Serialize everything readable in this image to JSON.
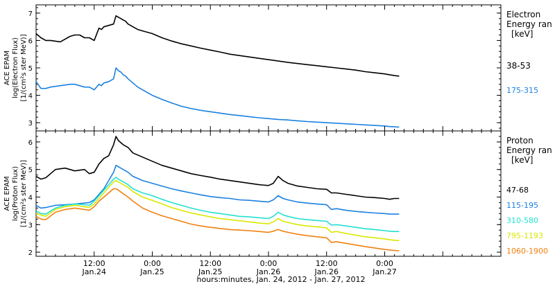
{
  "colors": {
    "black": "#000000",
    "blue": "#1a80e0",
    "cyan": "#22e0d0",
    "yellow": "#d8e800",
    "orange": "#f08010"
  },
  "x_axis": {
    "xlabel": "hours:minutes, Jan. 24, 2012 - Jan. 27, 2012",
    "range_hours": [
      0,
      96
    ],
    "ticks": [
      {
        "hour": 12,
        "time": "12:00",
        "date": "Jan.24"
      },
      {
        "hour": 24,
        "time": "0:00",
        "date": "Jan.25"
      },
      {
        "hour": 36,
        "time": "12:00",
        "date": "Jan.25"
      },
      {
        "hour": 48,
        "time": "0:00",
        "date": "Jan.26"
      },
      {
        "hour": 60,
        "time": "12:00",
        "date": "Jan.26"
      },
      {
        "hour": 72,
        "time": "0:00",
        "date": "Jan.27"
      }
    ]
  },
  "chart_data": [
    {
      "type": "line",
      "panel": "electron",
      "ylabel": [
        "ACE EPAM",
        "log(Electron Flux)",
        "[1/(cm²s ster MeV)]"
      ],
      "ylim": [
        2.7,
        7.3
      ],
      "yticks": [
        3,
        4,
        5,
        6,
        7
      ],
      "legend_title": [
        "Electron",
        "Energy ran",
        "[keV]"
      ],
      "series": [
        {
          "name": "38-53",
          "color_key": "black",
          "x": [
            0,
            1,
            2,
            3,
            5,
            7,
            8,
            9,
            10,
            11,
            12,
            13,
            13.5,
            14,
            15,
            16,
            16.5,
            17,
            17.5,
            18,
            18.5,
            19,
            20,
            21,
            22,
            24,
            26,
            28,
            30,
            32,
            34,
            36,
            38,
            40,
            42,
            44,
            46,
            48,
            50,
            52,
            54,
            56,
            58,
            60,
            62,
            64,
            66,
            68,
            70,
            72,
            73,
            74,
            75
          ],
          "y": [
            6.25,
            6.1,
            6.0,
            6.0,
            5.95,
            6.15,
            6.2,
            6.2,
            6.1,
            6.1,
            6.0,
            6.45,
            6.4,
            6.5,
            6.55,
            6.6,
            6.9,
            6.85,
            6.8,
            6.75,
            6.7,
            6.6,
            6.5,
            6.4,
            6.35,
            6.25,
            6.1,
            5.98,
            5.88,
            5.8,
            5.72,
            5.65,
            5.58,
            5.5,
            5.45,
            5.4,
            5.35,
            5.3,
            5.25,
            5.2,
            5.16,
            5.12,
            5.08,
            5.04,
            5.0,
            4.96,
            4.92,
            4.86,
            4.82,
            4.78,
            4.75,
            4.72,
            4.7
          ]
        },
        {
          "name": "175-315",
          "color_key": "blue",
          "x": [
            0,
            1,
            2,
            3,
            5,
            7,
            8,
            9,
            10,
            11,
            12,
            13,
            13.5,
            14,
            15,
            16,
            16.5,
            17,
            17.5,
            18,
            18.5,
            19,
            20,
            21,
            22,
            24,
            26,
            28,
            30,
            32,
            34,
            36,
            38,
            40,
            42,
            44,
            46,
            48,
            50,
            52,
            54,
            56,
            58,
            60,
            62,
            64,
            66,
            68,
            70,
            72,
            73,
            74,
            75
          ],
          "y": [
            4.5,
            4.25,
            4.25,
            4.3,
            4.35,
            4.4,
            4.4,
            4.35,
            4.3,
            4.3,
            4.2,
            4.4,
            4.35,
            4.45,
            4.5,
            4.6,
            5.0,
            4.9,
            4.85,
            4.75,
            4.7,
            4.6,
            4.45,
            4.3,
            4.2,
            4.0,
            3.85,
            3.72,
            3.6,
            3.52,
            3.45,
            3.4,
            3.35,
            3.3,
            3.26,
            3.22,
            3.18,
            3.15,
            3.12,
            3.1,
            3.07,
            3.04,
            3.02,
            3.0,
            2.98,
            2.96,
            2.94,
            2.92,
            2.9,
            2.88,
            2.86,
            2.85,
            2.84
          ]
        }
      ]
    },
    {
      "type": "line",
      "panel": "proton",
      "ylabel": [
        "ACE EPAM",
        "log(Proton Flux)",
        "[1/(cm²s ster MeV)]"
      ],
      "ylim": [
        1.85,
        6.4
      ],
      "yticks": [
        2,
        3,
        4,
        5,
        6
      ],
      "legend_title": [
        "Proton",
        "Energy ran",
        "[keV]"
      ],
      "series": [
        {
          "name": "47-68",
          "color_key": "black",
          "x": [
            0,
            1,
            2,
            4,
            6,
            8,
            10,
            11,
            12,
            13,
            14,
            15,
            16,
            16.5,
            17,
            18,
            19,
            20,
            22,
            24,
            26,
            28,
            30,
            32,
            34,
            36,
            38,
            40,
            42,
            44,
            46,
            48,
            49,
            50,
            51,
            52,
            54,
            56,
            58,
            60,
            61,
            62,
            64,
            66,
            68,
            70,
            72,
            73,
            74,
            75
          ],
          "y": [
            4.75,
            4.65,
            4.7,
            5.0,
            5.05,
            4.95,
            5.0,
            4.85,
            4.9,
            5.2,
            5.4,
            5.5,
            5.9,
            6.2,
            6.05,
            5.9,
            5.8,
            5.6,
            5.45,
            5.3,
            5.15,
            5.05,
            4.95,
            4.85,
            4.78,
            4.72,
            4.65,
            4.6,
            4.55,
            4.5,
            4.45,
            4.42,
            4.5,
            4.75,
            4.6,
            4.5,
            4.4,
            4.35,
            4.3,
            4.28,
            4.15,
            4.15,
            4.1,
            4.05,
            4.0,
            3.98,
            3.95,
            3.92,
            3.95,
            3.95
          ]
        },
        {
          "name": "115-195",
          "color_key": "blue",
          "x": [
            0,
            1,
            2,
            4,
            6,
            8,
            10,
            11,
            12,
            13,
            14,
            15,
            16,
            16.5,
            17,
            18,
            19,
            20,
            22,
            24,
            26,
            28,
            30,
            32,
            34,
            36,
            38,
            40,
            42,
            44,
            46,
            48,
            49,
            50,
            51,
            52,
            54,
            56,
            58,
            60,
            61,
            62,
            64,
            66,
            68,
            70,
            72,
            73,
            74,
            75
          ],
          "y": [
            3.7,
            3.6,
            3.62,
            3.7,
            3.72,
            3.75,
            3.78,
            3.8,
            3.9,
            4.1,
            4.3,
            4.6,
            4.9,
            5.15,
            5.1,
            5.0,
            4.9,
            4.75,
            4.6,
            4.5,
            4.4,
            4.3,
            4.22,
            4.15,
            4.08,
            4.02,
            3.98,
            3.95,
            3.9,
            3.88,
            3.85,
            3.82,
            3.9,
            4.05,
            3.95,
            3.9,
            3.82,
            3.78,
            3.75,
            3.72,
            3.55,
            3.58,
            3.52,
            3.48,
            3.45,
            3.42,
            3.4,
            3.38,
            3.38,
            3.38
          ]
        },
        {
          "name": "310-580",
          "color_key": "cyan",
          "x": [
            0,
            1,
            2,
            4,
            6,
            8,
            10,
            11,
            12,
            13,
            14,
            15,
            16,
            16.5,
            17,
            18,
            19,
            20,
            22,
            24,
            26,
            28,
            30,
            32,
            34,
            36,
            38,
            40,
            42,
            44,
            46,
            48,
            49,
            50,
            51,
            52,
            54,
            56,
            58,
            60,
            61,
            62,
            64,
            66,
            68,
            70,
            72,
            73,
            74,
            75
          ],
          "y": [
            3.5,
            3.4,
            3.38,
            3.6,
            3.7,
            3.75,
            3.72,
            3.7,
            3.85,
            4.05,
            4.25,
            4.45,
            4.65,
            4.72,
            4.65,
            4.55,
            4.45,
            4.3,
            4.15,
            4.05,
            3.92,
            3.8,
            3.7,
            3.6,
            3.52,
            3.45,
            3.4,
            3.35,
            3.3,
            3.28,
            3.25,
            3.22,
            3.3,
            3.45,
            3.35,
            3.3,
            3.22,
            3.18,
            3.15,
            3.12,
            2.98,
            3.0,
            2.95,
            2.9,
            2.85,
            2.82,
            2.78,
            2.76,
            2.75,
            2.75
          ]
        },
        {
          "name": "795-1193",
          "color_key": "yellow",
          "x": [
            0,
            1,
            2,
            4,
            6,
            8,
            10,
            11,
            12,
            13,
            14,
            15,
            16,
            16.5,
            17,
            18,
            19,
            20,
            22,
            24,
            26,
            28,
            30,
            32,
            34,
            36,
            38,
            40,
            42,
            44,
            46,
            48,
            49,
            50,
            51,
            52,
            54,
            56,
            58,
            60,
            61,
            62,
            64,
            66,
            68,
            70,
            72,
            73,
            74,
            75
          ],
          "y": [
            3.4,
            3.35,
            3.3,
            3.55,
            3.65,
            3.7,
            3.65,
            3.62,
            3.75,
            3.95,
            4.15,
            4.35,
            4.55,
            4.6,
            4.55,
            4.45,
            4.35,
            4.2,
            4.0,
            3.88,
            3.75,
            3.62,
            3.52,
            3.42,
            3.35,
            3.28,
            3.22,
            3.18,
            3.14,
            3.1,
            3.06,
            3.03,
            3.1,
            3.22,
            3.12,
            3.08,
            3.0,
            2.95,
            2.92,
            2.88,
            2.72,
            2.75,
            2.68,
            2.62,
            2.56,
            2.52,
            2.48,
            2.45,
            2.43,
            2.42
          ]
        },
        {
          "name": "1060-1900",
          "color_key": "orange",
          "x": [
            0,
            1,
            2,
            4,
            6,
            8,
            10,
            11,
            12,
            13,
            14,
            15,
            16,
            16.5,
            17,
            18,
            19,
            20,
            22,
            24,
            26,
            28,
            30,
            32,
            34,
            36,
            38,
            40,
            42,
            44,
            46,
            48,
            49,
            50,
            51,
            52,
            54,
            56,
            58,
            60,
            61,
            62,
            64,
            66,
            68,
            70,
            72,
            73,
            74,
            75
          ],
          "y": [
            3.3,
            3.2,
            3.18,
            3.45,
            3.55,
            3.6,
            3.55,
            3.52,
            3.65,
            3.85,
            4.0,
            4.15,
            4.3,
            4.3,
            4.25,
            4.12,
            4.0,
            3.85,
            3.6,
            3.45,
            3.32,
            3.22,
            3.12,
            3.02,
            2.95,
            2.9,
            2.86,
            2.82,
            2.8,
            2.78,
            2.75,
            2.72,
            2.76,
            2.82,
            2.76,
            2.72,
            2.65,
            2.6,
            2.56,
            2.52,
            2.35,
            2.38,
            2.32,
            2.26,
            2.2,
            2.15,
            2.1,
            2.08,
            2.06,
            2.05
          ]
        }
      ]
    }
  ]
}
